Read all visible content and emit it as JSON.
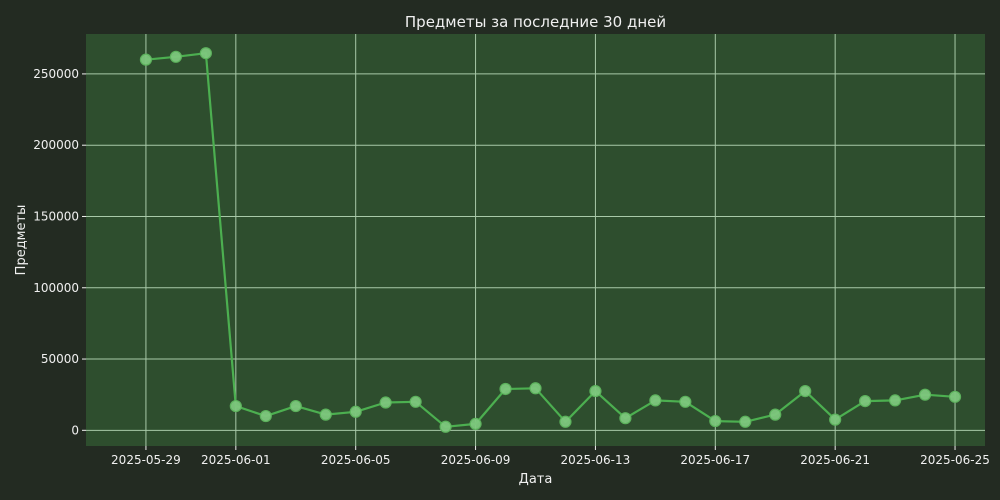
{
  "chart_data": {
    "type": "line",
    "title": "Предметы за последние 30 дней",
    "xlabel": "Дата",
    "ylabel": "Предметы",
    "grid": true,
    "legend": "none",
    "x_ticks": [
      "2025-05-29",
      "2025-06-01",
      "2025-06-05",
      "2025-06-09",
      "2025-06-13",
      "2025-06-17",
      "2025-06-21",
      "2025-06-25"
    ],
    "y_ticks": [
      "0",
      "50000",
      "100000",
      "150000",
      "200000",
      "250000"
    ],
    "ylim": [
      -11000,
      278000
    ],
    "xlim": [
      "2025-05-27",
      "2025-06-26"
    ],
    "colors": {
      "background": "#232b22",
      "plot_background": "#2e4e2e",
      "grid": "#a8c9a8",
      "line": "#4caf50",
      "marker_fill": "#7ec87e",
      "marker_edge": "#5fb85f",
      "text": "#f0f0f0"
    },
    "series": [
      {
        "x": [
          "2025-05-29",
          "2025-05-30",
          "2025-05-31",
          "2025-06-01",
          "2025-06-02",
          "2025-06-03",
          "2025-06-04",
          "2025-06-05",
          "2025-06-06",
          "2025-06-07",
          "2025-06-08",
          "2025-06-09",
          "2025-06-10",
          "2025-06-11",
          "2025-06-12",
          "2025-06-13",
          "2025-06-14",
          "2025-06-15",
          "2025-06-16",
          "2025-06-17",
          "2025-06-18",
          "2025-06-19",
          "2025-06-20",
          "2025-06-21",
          "2025-06-22",
          "2025-06-23",
          "2025-06-24",
          "2025-06-25"
        ],
        "values": [
          260000,
          262000,
          264500,
          17000,
          10000,
          17000,
          11000,
          13000,
          19500,
          20000,
          2500,
          4500,
          29000,
          29500,
          6000,
          27500,
          8500,
          21000,
          20000,
          6500,
          6000,
          11000,
          27500,
          7500,
          20500,
          21000,
          25000,
          23500
        ]
      }
    ]
  }
}
